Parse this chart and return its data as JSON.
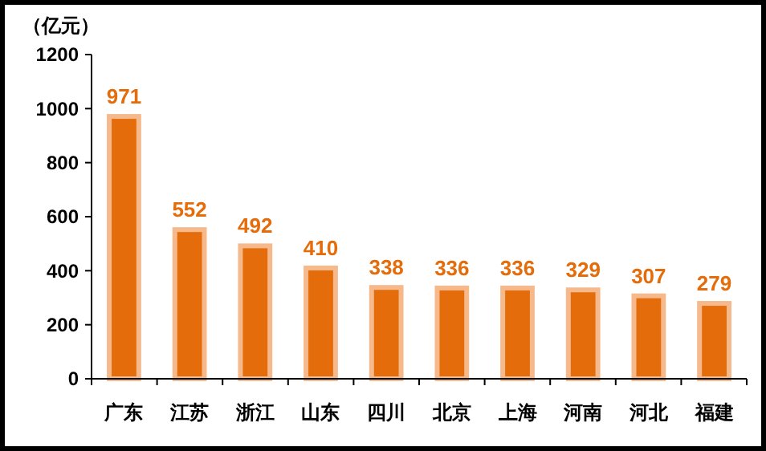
{
  "chart_data": {
    "type": "bar",
    "ylabel": "（亿元）",
    "categories": [
      "广东",
      "江苏",
      "浙江",
      "山东",
      "四川",
      "北京",
      "上海",
      "河南",
      "河北",
      "福建"
    ],
    "values": [
      971,
      552,
      492,
      410,
      338,
      336,
      336,
      329,
      307,
      279
    ],
    "color": "#e46c0a",
    "ylim": [
      0,
      1200
    ],
    "yticks": [
      0,
      200,
      400,
      600,
      800,
      1000,
      1200
    ],
    "data_labels": true,
    "grid": false
  }
}
